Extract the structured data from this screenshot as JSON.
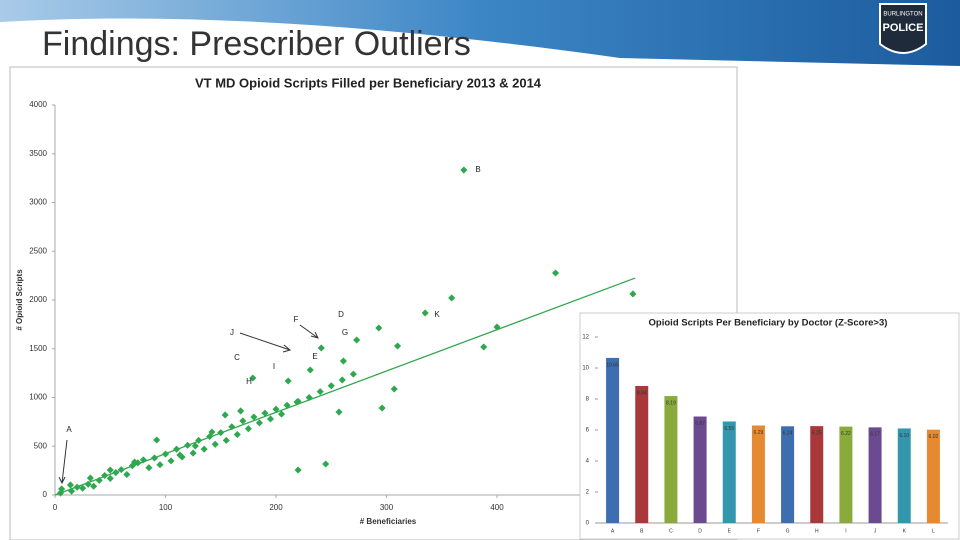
{
  "header": {
    "title": "Findings: Prescriber Outliers"
  },
  "logo": {
    "top": "BURLINGTON",
    "main": "POLICE"
  },
  "chart_data": [
    {
      "type": "scatter",
      "title": "VT MD Opioid Scripts Filled per Beneficiary 2013 & 2014",
      "x_label": "# Beneficiaries",
      "y_label": "# Opioid Scripts",
      "color": "#2ea84e",
      "xlim": [
        0,
        600
      ],
      "ylim": [
        0,
        4000
      ],
      "xticks": [
        0,
        100,
        200,
        300,
        400
      ],
      "yticks": [
        0,
        500,
        1000,
        1500,
        2000,
        2500,
        3000,
        3500,
        4000
      ],
      "x": [
        370,
        453,
        523,
        359,
        335,
        400,
        388,
        310,
        293,
        273,
        241,
        261,
        307,
        296,
        257,
        245,
        220,
        211,
        231,
        219,
        179,
        168,
        154,
        142,
        127,
        113,
        92,
        72,
        50,
        32,
        14,
        6,
        5,
        20,
        30,
        40,
        45,
        55,
        60,
        70,
        75,
        80,
        90,
        100,
        110,
        120,
        130,
        140,
        150,
        160,
        170,
        180,
        190,
        200,
        210,
        220,
        230,
        240,
        250,
        260,
        270,
        15,
        25,
        35,
        50,
        65,
        85,
        95,
        105,
        115,
        125,
        135,
        145,
        155,
        165,
        175,
        185,
        195,
        205
      ],
      "y": [
        3333,
        2277,
        2062,
        2021,
        1867,
        1723,
        1518,
        1528,
        1713,
        1590,
        1508,
        1374,
        1087,
        892,
        851,
        318,
        256,
        1169,
        1282,
        954,
        1200,
        862,
        821,
        646,
        503,
        410,
        564,
        338,
        256,
        174,
        103,
        62,
        20,
        80,
        110,
        150,
        200,
        230,
        260,
        300,
        330,
        360,
        380,
        420,
        470,
        510,
        560,
        600,
        640,
        700,
        760,
        800,
        840,
        880,
        920,
        960,
        1000,
        1060,
        1120,
        1180,
        1240,
        40,
        70,
        90,
        170,
        210,
        280,
        310,
        350,
        390,
        430,
        470,
        520,
        560,
        620,
        680,
        740,
        780,
        830
      ],
      "trendline": {
        "x": [
          0,
          525
        ],
        "y": [
          0,
          2225
        ]
      },
      "annotations": [
        "B",
        "K",
        "D",
        "F",
        "G",
        "J",
        "C",
        "I",
        "E",
        "H",
        "A"
      ]
    },
    {
      "type": "bar",
      "title": "Opioid Scripts Per Beneficiary by Doctor (Z-Score>3)",
      "categories": [
        "A",
        "B",
        "C",
        "D",
        "E",
        "F",
        "G",
        "H",
        "I",
        "J",
        "K",
        "L"
      ],
      "values": [
        10.65,
        8.84,
        8.19,
        6.87,
        6.55,
        6.29,
        6.24,
        6.25,
        6.22,
        6.17,
        6.1,
        6.02
      ],
      "value_labels": [
        "10.65",
        "8.84",
        "8.19",
        "6.87",
        "6.55",
        "6.29",
        "6.24",
        "6.25",
        "6.22",
        "6.17",
        "6.10",
        "6.02"
      ],
      "colors": [
        "#3d6eb0",
        "#a9383a",
        "#8aaa3c",
        "#6b4a90",
        "#3296ad",
        "#e58a30",
        "#3d6eb0",
        "#a9383a",
        "#8aaa3c",
        "#6b4a90",
        "#3296ad",
        "#e58a30"
      ],
      "ylim": [
        0,
        12
      ],
      "yticks": [
        0,
        2,
        4,
        6,
        8,
        10,
        12
      ]
    }
  ]
}
